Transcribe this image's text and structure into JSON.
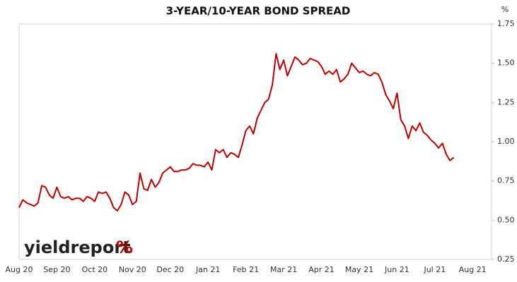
{
  "chart_data": {
    "type": "line",
    "title": "3-YEAR/10-YEAR BOND SPREAD",
    "y_unit": "%",
    "logo": "yieldreport",
    "logo_mark": "%",
    "categories": [
      "Aug 20",
      null,
      null,
      null,
      null,
      null,
      null,
      null,
      null,
      null,
      "Sep 20",
      null,
      null,
      null,
      null,
      null,
      null,
      null,
      null,
      null,
      "Oct 20",
      null,
      null,
      null,
      null,
      null,
      null,
      null,
      null,
      null,
      "Nov 20",
      null,
      null,
      null,
      null,
      null,
      null,
      null,
      null,
      null,
      "Dec 20",
      null,
      null,
      null,
      null,
      null,
      null,
      null,
      null,
      null,
      "Jan 21",
      null,
      null,
      null,
      null,
      null,
      null,
      null,
      null,
      null,
      "Feb 21",
      null,
      null,
      null,
      null,
      null,
      null,
      null,
      null,
      null,
      "Mar 21",
      null,
      null,
      null,
      null,
      null,
      null,
      null,
      null,
      null,
      "Apr 21",
      null,
      null,
      null,
      null,
      null,
      null,
      null,
      null,
      null,
      "May 21",
      null,
      null,
      null,
      null,
      null,
      null,
      null,
      null,
      null,
      "Jun 21",
      null,
      null,
      null,
      null,
      null,
      null,
      null,
      null,
      null,
      "Jul 21",
      null,
      null,
      null,
      null,
      null,
      null,
      null,
      null,
      null,
      "Aug 21",
      null,
      null,
      null,
      null,
      null
    ],
    "series": [
      {
        "name": "3-year/10-year spread",
        "color": "#c00000",
        "values": [
          0.58,
          0.63,
          0.61,
          0.6,
          0.59,
          0.61,
          0.72,
          0.71,
          0.66,
          0.64,
          0.71,
          0.65,
          0.64,
          0.65,
          0.63,
          0.64,
          0.64,
          0.62,
          0.65,
          0.64,
          0.62,
          0.68,
          0.67,
          0.68,
          0.64,
          0.58,
          0.56,
          0.6,
          0.68,
          0.66,
          0.6,
          0.62,
          0.8,
          0.7,
          0.69,
          0.76,
          0.71,
          0.74,
          0.8,
          0.82,
          0.84,
          0.81,
          0.81,
          0.82,
          0.82,
          0.83,
          0.86,
          0.85,
          0.85,
          0.84,
          0.87,
          0.82,
          0.95,
          0.93,
          0.95,
          0.9,
          0.93,
          0.92,
          0.9,
          0.98,
          1.07,
          1.1,
          1.05,
          1.15,
          1.2,
          1.25,
          1.27,
          1.36,
          1.56,
          1.46,
          1.52,
          1.42,
          1.48,
          1.54,
          1.52,
          1.49,
          1.5,
          1.53,
          1.52,
          1.51,
          1.48,
          1.43,
          1.45,
          1.43,
          1.46,
          1.38,
          1.4,
          1.43,
          1.5,
          1.47,
          1.44,
          1.45,
          1.43,
          1.42,
          1.44,
          1.43,
          1.38,
          1.3,
          1.26,
          1.21,
          1.31,
          1.14,
          1.1,
          1.02,
          1.1,
          1.07,
          1.12,
          1.06,
          1.04,
          1.01,
          0.99,
          0.96,
          0.99,
          0.92,
          0.88,
          0.9,
          null,
          null,
          null,
          null,
          null,
          null,
          null,
          null,
          null,
          null
        ]
      }
    ],
    "ylim": [
      0.25,
      1.75
    ],
    "yticks": [
      {
        "value": 0.25,
        "label": "0.25"
      },
      {
        "value": 0.5,
        "label": "0.50"
      },
      {
        "value": 0.75,
        "label": "0.75"
      },
      {
        "value": 1,
        "label": "1.00"
      },
      {
        "value": 1.25,
        "label": "1.25"
      },
      {
        "value": 1.5,
        "label": "1.50"
      },
      {
        "value": 1.75,
        "label": "1.75"
      }
    ],
    "grid": false
  }
}
